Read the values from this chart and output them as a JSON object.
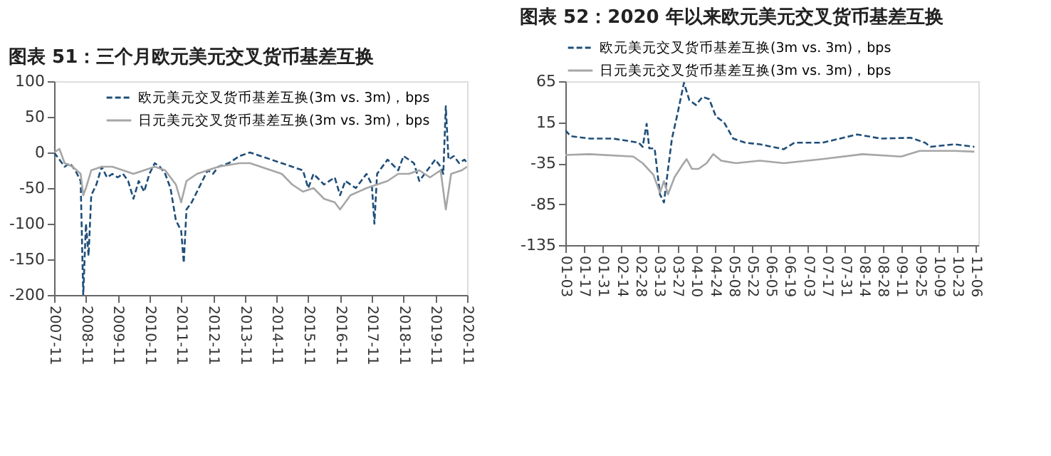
{
  "chart_data": [
    {
      "type": "line",
      "title": "图表 51：三个月欧元美元交叉货币基差互换",
      "legend": "top",
      "grid": false,
      "marker": "none",
      "xlim": [
        "2007-11",
        "2020-11"
      ],
      "xticks": [
        "2007-11",
        "2008-11",
        "2009-11",
        "2010-11",
        "2011-11",
        "2012-11",
        "2013-11",
        "2014-11",
        "2015-11",
        "2016-11",
        "2017-11",
        "2018-11",
        "2019-11",
        "2020-11"
      ],
      "ylim": [
        -200,
        100
      ],
      "yticks": [
        -200,
        -150,
        -100,
        -50,
        0,
        50,
        100
      ],
      "series": [
        {
          "name": "欧元美元交叉货币基差互换(3m vs. 3m)，bps",
          "color": "#1f4e79",
          "line_style": "dashed",
          "x": [
            "2007-11",
            "2007-12",
            "2008-01",
            "2008-03",
            "2008-05",
            "2008-07",
            "2008-09",
            "2008-10",
            "2008-11",
            "2008-12",
            "2009-01",
            "2009-03",
            "2009-05",
            "2009-07",
            "2009-09",
            "2009-11",
            "2010-01",
            "2010-03",
            "2010-05",
            "2010-07",
            "2010-09",
            "2010-11",
            "2011-01",
            "2011-03",
            "2011-05",
            "2011-07",
            "2011-09",
            "2011-11",
            "2011-12",
            "2012-01",
            "2012-03",
            "2012-05",
            "2012-07",
            "2012-09",
            "2012-11",
            "2013-01",
            "2013-05",
            "2013-09",
            "2014-01",
            "2014-05",
            "2014-09",
            "2015-01",
            "2015-05",
            "2015-09",
            "2015-11",
            "2016-01",
            "2016-05",
            "2016-09",
            "2016-11",
            "2017-01",
            "2017-05",
            "2017-09",
            "2017-11",
            "2017-12",
            "2018-01",
            "2018-05",
            "2018-09",
            "2018-11",
            "2019-03",
            "2019-05",
            "2019-09",
            "2019-11",
            "2020-01",
            "2020-02",
            "2020-03",
            "2020-04",
            "2020-06",
            "2020-08",
            "2020-10",
            "2020-11"
          ],
          "values": [
            0,
            -5,
            -10,
            -20,
            -15,
            -25,
            -40,
            -200,
            -100,
            -145,
            -60,
            -45,
            -20,
            -35,
            -30,
            -35,
            -30,
            -40,
            -65,
            -40,
            -55,
            -30,
            -15,
            -20,
            -30,
            -50,
            -95,
            -110,
            -155,
            -80,
            -70,
            -55,
            -40,
            -25,
            -30,
            -20,
            -15,
            -5,
            0,
            -5,
            -10,
            -15,
            -20,
            -25,
            -50,
            -30,
            -45,
            -35,
            -60,
            -40,
            -50,
            -30,
            -45,
            -100,
            -30,
            -10,
            -25,
            -5,
            -15,
            -40,
            -20,
            -10,
            -20,
            -30,
            65,
            -10,
            -5,
            -15,
            -10,
            -15
          ]
        },
        {
          "name": "日元美元交叉货币基差互换(3m vs. 3m)，bps",
          "color": "#a6a6a6",
          "line_style": "solid",
          "x": [
            "2007-11",
            "2008-01",
            "2008-03",
            "2008-06",
            "2008-09",
            "2008-10",
            "2008-11",
            "2009-01",
            "2009-05",
            "2009-09",
            "2010-01",
            "2010-05",
            "2010-09",
            "2011-01",
            "2011-05",
            "2011-09",
            "2011-11",
            "2012-01",
            "2012-05",
            "2012-09",
            "2013-01",
            "2013-09",
            "2014-01",
            "2014-09",
            "2015-01",
            "2015-05",
            "2015-09",
            "2016-01",
            "2016-05",
            "2016-09",
            "2016-11",
            "2017-03",
            "2017-09",
            "2018-01",
            "2018-05",
            "2018-09",
            "2019-01",
            "2019-05",
            "2019-09",
            "2020-01",
            "2020-03",
            "2020-05",
            "2020-09",
            "2020-11"
          ],
          "values": [
            0,
            5,
            -15,
            -20,
            -30,
            -60,
            -50,
            -25,
            -20,
            -20,
            -25,
            -30,
            -25,
            -20,
            -25,
            -45,
            -70,
            -40,
            -30,
            -25,
            -20,
            -15,
            -15,
            -25,
            -30,
            -45,
            -55,
            -50,
            -65,
            -70,
            -80,
            -60,
            -50,
            -45,
            -40,
            -30,
            -30,
            -25,
            -35,
            -25,
            -80,
            -30,
            -25,
            -20
          ]
        }
      ]
    },
    {
      "type": "line",
      "title": "图表 52：2020 年以来欧元美元交叉货币基差互换",
      "legend": "top",
      "grid": false,
      "marker": "none",
      "xlim": [
        "2020-01-03",
        "2020-11-08"
      ],
      "xticks": [
        {
          "value": "2020-01-03",
          "label": "01-03"
        },
        {
          "value": "2020-01-17",
          "label": "01-17"
        },
        {
          "value": "2020-01-31",
          "label": "01-31"
        },
        {
          "value": "2020-02-14",
          "label": "02-14"
        },
        {
          "value": "2020-02-28",
          "label": "02-28"
        },
        {
          "value": "2020-03-13",
          "label": "03-13"
        },
        {
          "value": "2020-03-27",
          "label": "03-27"
        },
        {
          "value": "2020-04-10",
          "label": "04-10"
        },
        {
          "value": "2020-04-24",
          "label": "04-24"
        },
        {
          "value": "2020-05-08",
          "label": "05-08"
        },
        {
          "value": "2020-05-22",
          "label": "05-22"
        },
        {
          "value": "2020-06-05",
          "label": "06-05"
        },
        {
          "value": "2020-06-19",
          "label": "06-19"
        },
        {
          "value": "2020-07-03",
          "label": "07-03"
        },
        {
          "value": "2020-07-17",
          "label": "07-17"
        },
        {
          "value": "2020-07-31",
          "label": "07-31"
        },
        {
          "value": "2020-08-14",
          "label": "08-14"
        },
        {
          "value": "2020-08-28",
          "label": "08-28"
        },
        {
          "value": "2020-09-11",
          "label": "09-11"
        },
        {
          "value": "2020-09-25",
          "label": "09-25"
        },
        {
          "value": "2020-10-09",
          "label": "10-09"
        },
        {
          "value": "2020-10-23",
          "label": "10-23"
        },
        {
          "value": "2020-11-06",
          "label": "11-06"
        }
      ],
      "ylim": [
        -135,
        65
      ],
      "yticks": [
        -135,
        -85,
        -35,
        15,
        65
      ],
      "series": [
        {
          "name": "欧元美元交叉货币基差互换(3m vs. 3m)，bps",
          "color": "#1f4e79",
          "line_style": "dashed",
          "x": [
            "2020-01-03",
            "2020-01-07",
            "2020-01-21",
            "2020-02-08",
            "2020-02-27",
            "2020-03-01",
            "2020-03-04",
            "2020-03-06",
            "2020-03-10",
            "2020-03-14",
            "2020-03-17",
            "2020-03-20",
            "2020-03-23",
            "2020-03-27",
            "2020-04-01",
            "2020-04-05",
            "2020-04-10",
            "2020-04-15",
            "2020-04-20",
            "2020-04-25",
            "2020-05-01",
            "2020-05-08",
            "2020-05-17",
            "2020-05-28",
            "2020-06-15",
            "2020-06-23",
            "2020-07-14",
            "2020-08-09",
            "2020-08-27",
            "2020-09-18",
            "2020-09-29",
            "2020-10-03",
            "2020-10-21",
            "2020-11-05"
          ],
          "values": [
            5,
            -2,
            -5,
            -5,
            -10,
            -15,
            13,
            -17,
            -17,
            -73,
            -83,
            -43,
            -5,
            24,
            63,
            42,
            36,
            46,
            43,
            22,
            15,
            -5,
            -10,
            -12,
            -18,
            -10,
            -10,
            0,
            -5,
            -4,
            -10,
            -15,
            -12,
            -15
          ]
        },
        {
          "name": "日元美元交叉货币基差互换(3m vs. 3m)，bps",
          "color": "#a6a6a6",
          "line_style": "solid",
          "x": [
            "2020-01-03",
            "2020-01-21",
            "2020-02-23",
            "2020-03-01",
            "2020-03-09",
            "2020-03-14",
            "2020-03-17",
            "2020-03-20",
            "2020-03-25",
            "2020-03-31",
            "2020-04-03",
            "2020-04-07",
            "2020-04-12",
            "2020-04-18",
            "2020-04-23",
            "2020-04-29",
            "2020-05-10",
            "2020-05-28",
            "2020-06-15",
            "2020-07-14",
            "2020-08-13",
            "2020-09-11",
            "2020-09-25",
            "2020-10-21",
            "2020-11-05"
          ],
          "values": [
            -25,
            -24,
            -27,
            -35,
            -49,
            -71,
            -57,
            -73,
            -52,
            -37,
            -30,
            -42,
            -42,
            -35,
            -24,
            -32,
            -35,
            -32,
            -35,
            -30,
            -24,
            -27,
            -20,
            -20,
            -21
          ]
        }
      ]
    }
  ]
}
